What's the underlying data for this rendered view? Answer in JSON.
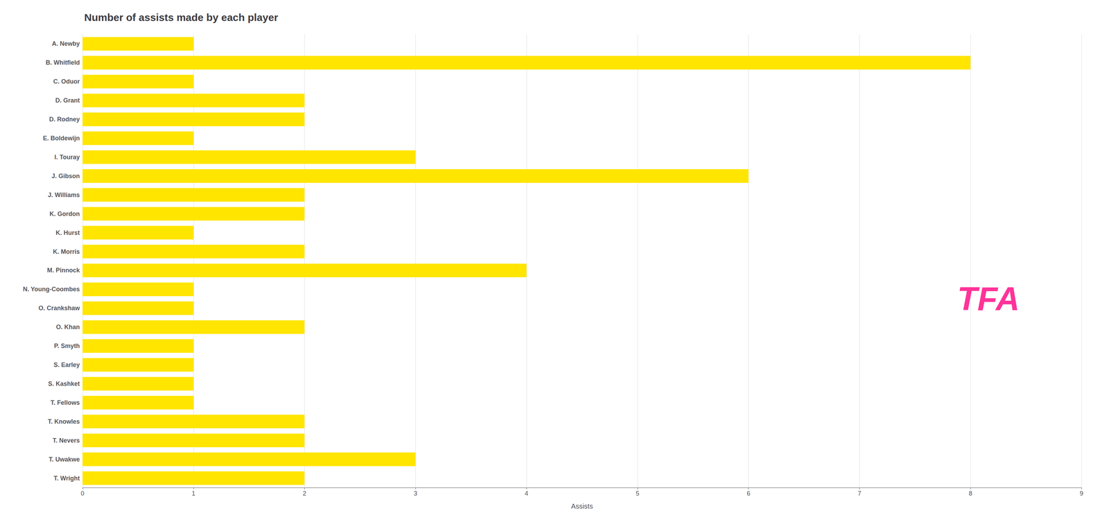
{
  "chart_data": {
    "type": "bar",
    "orientation": "horizontal",
    "title": "Number of assists made by each player",
    "xlabel": "Assists",
    "categories": [
      "A. Newby",
      "B. Whitfield",
      "C. Oduor",
      "D. Grant",
      "D. Rodney",
      "E. Boldewijn",
      "I. Touray",
      "J. Gibson",
      "J. Williams",
      "K. Gordon",
      "K. Hurst",
      "K. Morris",
      "M. Pinnock",
      "N. Young-Coombes",
      "O. Crankshaw",
      "O. Khan",
      "P. Smyth",
      "S. Earley",
      "S. Kashket",
      "T. Fellows",
      "T. Knowles",
      "T. Nevers",
      "T. Uwakwe",
      "T. Wright"
    ],
    "values": [
      1,
      8,
      1,
      2,
      2,
      1,
      3,
      6,
      2,
      2,
      1,
      2,
      4,
      1,
      1,
      2,
      1,
      1,
      1,
      1,
      2,
      2,
      3,
      2
    ],
    "color": "#FFE500",
    "xlim": [
      0,
      9
    ],
    "xticks": [
      0,
      1,
      2,
      3,
      4,
      5,
      6,
      7,
      8,
      9
    ],
    "grid": true,
    "annotations": [
      {
        "text": "TFA"
      }
    ]
  }
}
